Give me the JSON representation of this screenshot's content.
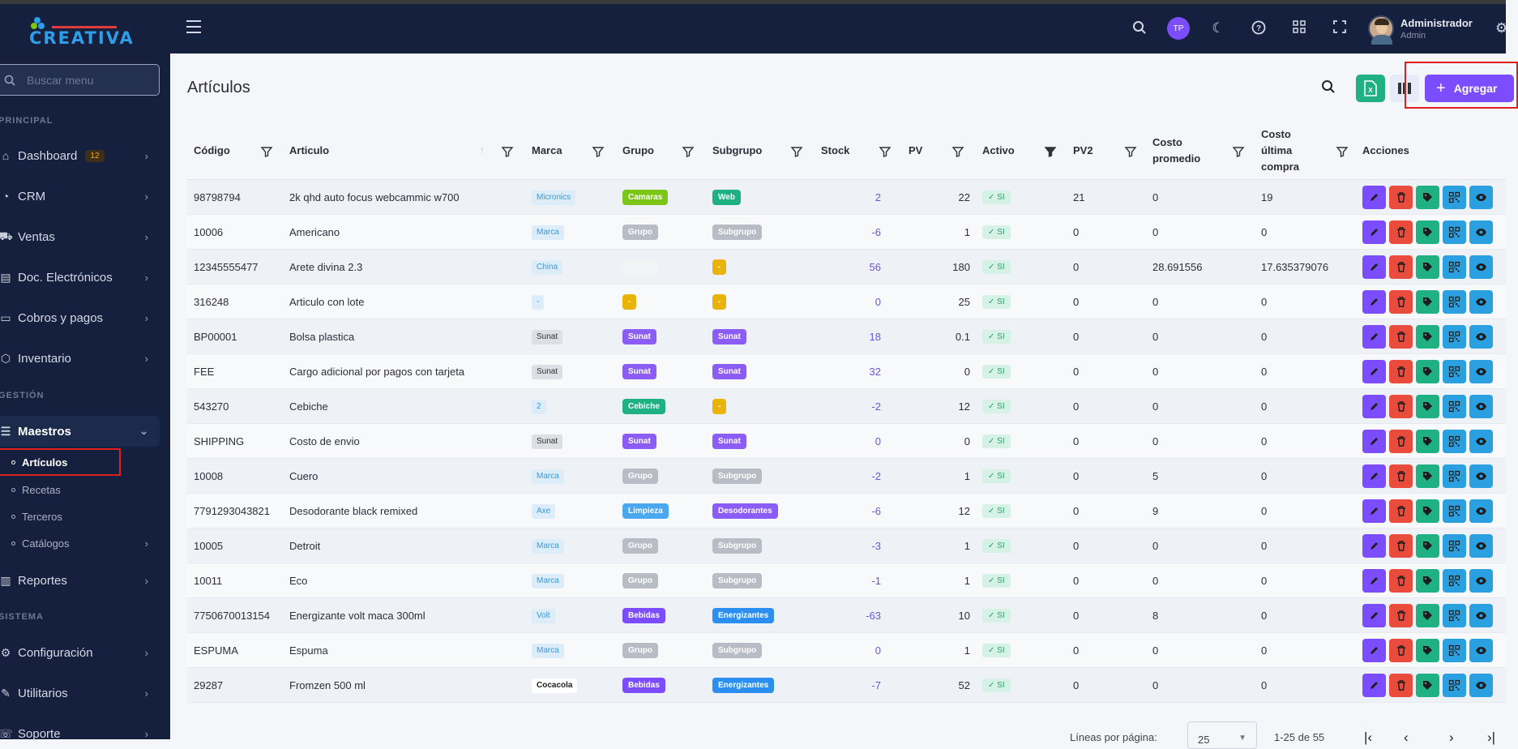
{
  "sidebar": {
    "logo_text": "CREATIVA",
    "search_placeholder": "Buscar menu",
    "sections": {
      "principal": "PRINCIPAL",
      "gestion": "GESTIÓN",
      "sistema": "SISTEMA"
    },
    "items": {
      "dashboard": {
        "label": "Dashboard",
        "badge": "12"
      },
      "crm": {
        "label": "CRM"
      },
      "ventas": {
        "label": "Ventas"
      },
      "doc": {
        "label": "Doc. Electrónicos"
      },
      "cobros": {
        "label": "Cobros y pagos"
      },
      "inventario": {
        "label": "Inventario"
      },
      "maestros": {
        "label": "Maestros"
      },
      "reportes": {
        "label": "Reportes"
      },
      "configuracion": {
        "label": "Configuración"
      },
      "utilitarios": {
        "label": "Utilitarios"
      },
      "soporte": {
        "label": "Soporte"
      }
    },
    "subitems": {
      "articulos": "Artículos",
      "recetas": "Recetas",
      "terceros": "Terceros",
      "catalogos": "Catálogos"
    }
  },
  "header": {
    "avatar_initials": "TP",
    "user_name": "Administrador",
    "user_role": "Admin"
  },
  "page": {
    "title": "Artículos",
    "add_label": "Agregar",
    "excel_icon": "X"
  },
  "table": {
    "columns": {
      "codigo": "Código",
      "articulo": "Articulo",
      "marca": "Marca",
      "grupo": "Grupo",
      "subgrupo": "Subgrupo",
      "stock": "Stock",
      "pv": "PV",
      "activo": "Activo",
      "pv2": "PV2",
      "costo_prom_1": "Costo",
      "costo_prom_2": "promedio",
      "costo_ult_1": "Costo",
      "costo_ult_2": "última",
      "costo_ult_3": "compra",
      "acciones": "Acciones"
    },
    "rows": [
      {
        "codigo": "98798794",
        "articulo": "2k qhd auto focus webcammic w700",
        "marca": "Micronics",
        "marca_style": "light",
        "grupo": "Camaras",
        "grupo_color": "#7cc618",
        "subgrupo": "Web",
        "sub_color": "#1fb182",
        "stock": "2",
        "pv": "22",
        "activo": "SI",
        "pv2": "21",
        "costo_prom": "0",
        "costo_ult": "19"
      },
      {
        "codigo": "10006",
        "articulo": "Americano",
        "marca": "Marca",
        "marca_style": "light",
        "grupo": "Grupo",
        "grupo_color": "#b8bcc4",
        "subgrupo": "Subgrupo",
        "sub_color": "#b8bcc4",
        "stock": "-6",
        "pv": "1",
        "activo": "SI",
        "pv2": "0",
        "costo_prom": "0",
        "costo_ult": "0"
      },
      {
        "codigo": "12345555477",
        "articulo": "Arete divina 2.3",
        "marca": "China",
        "marca_style": "light",
        "grupo": "Aretes",
        "grupo_color": "#f2f3f5",
        "subgrupo": "-",
        "sub_color": "#eab308",
        "stock": "56",
        "pv": "180",
        "activo": "SI",
        "pv2": "0",
        "costo_prom": "28.691556",
        "costo_ult": "17.635379076"
      },
      {
        "codigo": "316248",
        "articulo": "Articulo con lote",
        "marca": "-",
        "marca_style": "light",
        "grupo": "-",
        "grupo_color": "#eab308",
        "subgrupo": "-",
        "sub_color": "#eab308",
        "stock": "0",
        "pv": "25",
        "activo": "SI",
        "pv2": "0",
        "costo_prom": "0",
        "costo_ult": "0"
      },
      {
        "codigo": "BP00001",
        "articulo": "Bolsa plastica",
        "marca": "Sunat",
        "marca_style": "gray",
        "grupo": "Sunat",
        "grupo_color": "#8b5cf6",
        "subgrupo": "Sunat",
        "sub_color": "#8b5cf6",
        "stock": "18",
        "pv": "0.1",
        "activo": "SI",
        "pv2": "0",
        "costo_prom": "0",
        "costo_ult": "0"
      },
      {
        "codigo": "FEE",
        "articulo": "Cargo adicional por pagos con tarjeta",
        "marca": "Sunat",
        "marca_style": "gray",
        "grupo": "Sunat",
        "grupo_color": "#8b5cf6",
        "subgrupo": "Sunat",
        "sub_color": "#8b5cf6",
        "stock": "32",
        "pv": "0",
        "activo": "SI",
        "pv2": "0",
        "costo_prom": "0",
        "costo_ult": "0"
      },
      {
        "codigo": "543270",
        "articulo": "Cebiche",
        "marca": "2",
        "marca_style": "light",
        "grupo": "Cebiche",
        "grupo_color": "#1fb182",
        "subgrupo": "-",
        "sub_color": "#eab308",
        "stock": "-2",
        "pv": "12",
        "activo": "SI",
        "pv2": "0",
        "costo_prom": "0",
        "costo_ult": "0"
      },
      {
        "codigo": "SHIPPING",
        "articulo": "Costo de envio",
        "marca": "Sunat",
        "marca_style": "gray",
        "grupo": "Sunat",
        "grupo_color": "#8b5cf6",
        "subgrupo": "Sunat",
        "sub_color": "#8b5cf6",
        "stock": "0",
        "pv": "0",
        "activo": "SI",
        "pv2": "0",
        "costo_prom": "0",
        "costo_ult": "0"
      },
      {
        "codigo": "10008",
        "articulo": "Cuero",
        "marca": "Marca",
        "marca_style": "light",
        "grupo": "Grupo",
        "grupo_color": "#b8bcc4",
        "subgrupo": "Subgrupo",
        "sub_color": "#b8bcc4",
        "stock": "-2",
        "pv": "1",
        "activo": "SI",
        "pv2": "0",
        "costo_prom": "5",
        "costo_ult": "0"
      },
      {
        "codigo": "7791293043821",
        "articulo": "Desodorante black remixed",
        "marca": "Axe",
        "marca_style": "light",
        "grupo": "Limpieza",
        "grupo_color": "#4aa8f0",
        "subgrupo": "Desodorantes",
        "sub_color": "#8b5cf6",
        "stock": "-6",
        "pv": "12",
        "activo": "SI",
        "pv2": "0",
        "costo_prom": "9",
        "costo_ult": "0"
      },
      {
        "codigo": "10005",
        "articulo": "Detroit",
        "marca": "Marca",
        "marca_style": "light",
        "grupo": "Grupo",
        "grupo_color": "#b8bcc4",
        "subgrupo": "Subgrupo",
        "sub_color": "#b8bcc4",
        "stock": "-3",
        "pv": "1",
        "activo": "SI",
        "pv2": "0",
        "costo_prom": "0",
        "costo_ult": "0"
      },
      {
        "codigo": "10011",
        "articulo": "Eco",
        "marca": "Marca",
        "marca_style": "light",
        "grupo": "Grupo",
        "grupo_color": "#b8bcc4",
        "subgrupo": "Subgrupo",
        "sub_color": "#b8bcc4",
        "stock": "-1",
        "pv": "1",
        "activo": "SI",
        "pv2": "0",
        "costo_prom": "0",
        "costo_ult": "0"
      },
      {
        "codigo": "7750670013154",
        "articulo": "Energizante volt maca 300ml",
        "marca": "Volt",
        "marca_style": "light",
        "grupo": "Bebidas",
        "grupo_color": "#7c4dff",
        "subgrupo": "Energizantes",
        "sub_color": "#2a8ff0",
        "stock": "-63",
        "pv": "10",
        "activo": "SI",
        "pv2": "0",
        "costo_prom": "8",
        "costo_ult": "0"
      },
      {
        "codigo": "ESPUMA",
        "articulo": "Espuma",
        "marca": "Marca",
        "marca_style": "light",
        "grupo": "Grupo",
        "grupo_color": "#b8bcc4",
        "subgrupo": "Subgrupo",
        "sub_color": "#b8bcc4",
        "stock": "0",
        "pv": "1",
        "activo": "SI",
        "pv2": "0",
        "costo_prom": "0",
        "costo_ult": "0"
      },
      {
        "codigo": "29287",
        "articulo": "Fromzen 500 ml",
        "marca": "Cocacola",
        "marca_style": "white",
        "grupo": "Bebidas",
        "grupo_color": "#7c4dff",
        "subgrupo": "Energizantes",
        "sub_color": "#2a8ff0",
        "stock": "-7",
        "pv": "52",
        "activo": "SI",
        "pv2": "0",
        "costo_prom": "0",
        "costo_ult": "0"
      }
    ]
  },
  "footer": {
    "rows_label": "Líneas por página:",
    "rows_value": "25",
    "range": "1-25 de 55"
  },
  "colors": {
    "accent": "#7c4dff",
    "sidebar_bg": "#14203d",
    "excel": "#1fb182"
  }
}
